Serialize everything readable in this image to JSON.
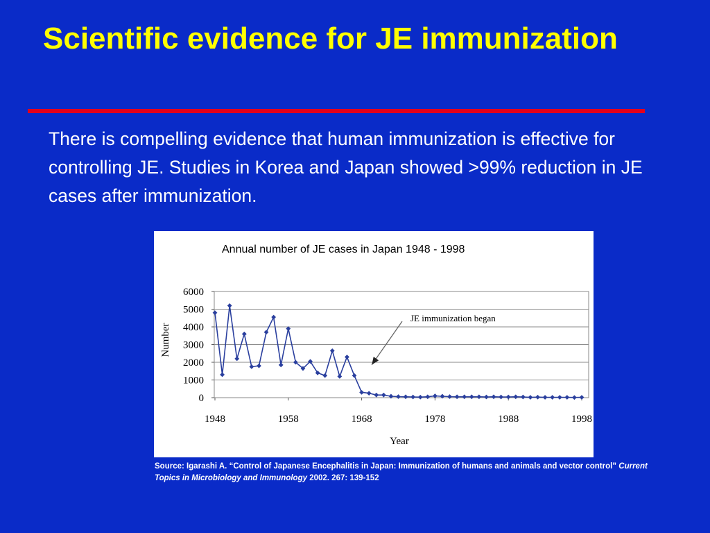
{
  "slide": {
    "title": "Scientific evidence for JE immunization",
    "body": "There is compelling evidence that  human immunization is effective for controlling JE. Studies in Korea and Japan showed >99% reduction in JE cases after immunization."
  },
  "source": {
    "part1": "Source: Igarashi A. “Control of Japanese Encephalitis in Japan: Immunization of humans and animals and vector control”",
    "journal": "Current Topics in Microbiology and Immunology",
    "part2": "2002. 267: 139-152"
  },
  "colors": {
    "background": "#0a2bc8",
    "title": "#ffff00",
    "rule": "#e4001b",
    "series": "#2a3f9e"
  },
  "chart_data": {
    "type": "line",
    "title": "Annual number of JE cases in Japan 1948 - 1998",
    "xlabel": "Year",
    "ylabel": "Number",
    "xlim": [
      1948,
      1998
    ],
    "ylim": [
      0,
      6000
    ],
    "xticks": [
      1948,
      1958,
      1968,
      1978,
      1988,
      1998
    ],
    "yticks": [
      0,
      1000,
      2000,
      3000,
      4000,
      5000,
      6000
    ],
    "grid": "horizontal",
    "annotation": {
      "text": "JE immunization began",
      "x": 1969,
      "y": 1700
    },
    "series": [
      {
        "x": [
          1948,
          1949,
          1950,
          1951,
          1952,
          1953,
          1954,
          1955,
          1956,
          1957,
          1958,
          1959,
          1960,
          1961,
          1962,
          1963,
          1964,
          1965,
          1966,
          1967,
          1968,
          1969,
          1970,
          1971,
          1972,
          1973,
          1974,
          1975,
          1976,
          1977,
          1978,
          1979,
          1980,
          1981,
          1982,
          1983,
          1984,
          1985,
          1986,
          1987,
          1988,
          1989,
          1990,
          1991,
          1992,
          1993,
          1994,
          1995,
          1996,
          1997,
          1998
        ],
        "y": [
          4800,
          1300,
          5200,
          2200,
          3600,
          1750,
          1800,
          3700,
          4550,
          1850,
          3900,
          2000,
          1650,
          2050,
          1400,
          1250,
          2650,
          1200,
          2300,
          1250,
          300,
          250,
          150,
          150,
          80,
          60,
          50,
          40,
          30,
          50,
          100,
          80,
          60,
          50,
          50,
          50,
          50,
          40,
          50,
          40,
          40,
          50,
          40,
          20,
          30,
          20,
          20,
          20,
          20,
          10,
          20
        ]
      }
    ]
  }
}
